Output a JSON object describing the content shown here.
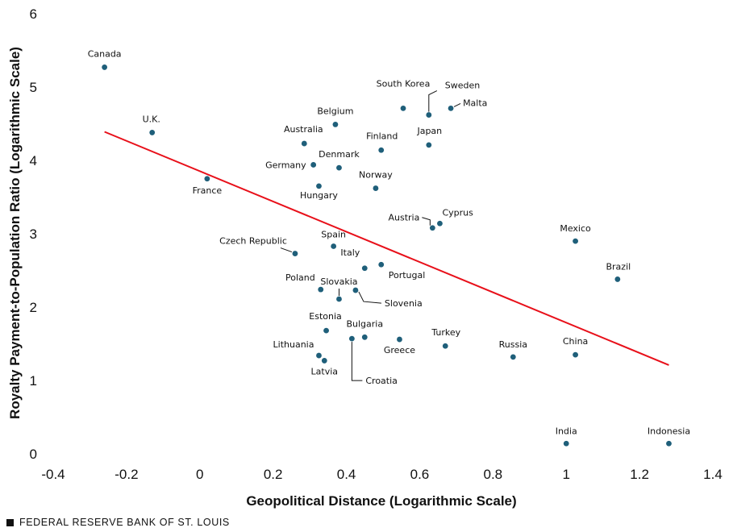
{
  "chart_data": {
    "type": "scatter",
    "xlabel": "Geopolitical Distance (Logarithmic Scale)",
    "ylabel": "Royalty Payment-to-Population Ratio (Logarithmic Scale)",
    "xlim": [
      -0.4,
      1.4
    ],
    "ylim": [
      0,
      6
    ],
    "xticks": [
      "-0.4",
      "-0.2",
      "0",
      "0.2",
      "0.4",
      "0.6",
      "0.8",
      "1",
      "1.2",
      "1.4"
    ],
    "yticks": [
      "0",
      "1",
      "2",
      "3",
      "4",
      "5",
      "6"
    ],
    "grid": false,
    "point_color": "#1f5f7a",
    "trend_color": "#e8101a",
    "trendline": {
      "x": [
        -0.26,
        1.28
      ],
      "y": [
        4.39,
        1.21
      ]
    },
    "points": [
      {
        "label": "Canada",
        "x": -0.26,
        "y": 5.27
      },
      {
        "label": "U.K.",
        "x": -0.13,
        "y": 4.38
      },
      {
        "label": "France",
        "x": 0.02,
        "y": 3.75
      },
      {
        "label": "Australia",
        "x": 0.285,
        "y": 4.23
      },
      {
        "label": "Belgium",
        "x": 0.37,
        "y": 4.49
      },
      {
        "label": "Germany",
        "x": 0.31,
        "y": 3.94
      },
      {
        "label": "Denmark",
        "x": 0.38,
        "y": 3.9
      },
      {
        "label": "Hungary",
        "x": 0.325,
        "y": 3.65
      },
      {
        "label": "Finland",
        "x": 0.495,
        "y": 4.14
      },
      {
        "label": "South Korea",
        "x": 0.555,
        "y": 4.71
      },
      {
        "label": "Sweden",
        "x": 0.625,
        "y": 4.62
      },
      {
        "label": "Malta",
        "x": 0.685,
        "y": 4.71
      },
      {
        "label": "Japan",
        "x": 0.625,
        "y": 4.21
      },
      {
        "label": "Norway",
        "x": 0.48,
        "y": 3.62
      },
      {
        "label": "Austria",
        "x": 0.635,
        "y": 3.08
      },
      {
        "label": "Cyprus",
        "x": 0.655,
        "y": 3.14
      },
      {
        "label": "Mexico",
        "x": 1.025,
        "y": 2.9
      },
      {
        "label": "Brazil",
        "x": 1.14,
        "y": 2.38
      },
      {
        "label": "Czech Republic",
        "x": 0.26,
        "y": 2.73
      },
      {
        "label": "Spain",
        "x": 0.365,
        "y": 2.83
      },
      {
        "label": "Italy",
        "x": 0.45,
        "y": 2.53
      },
      {
        "label": "Portugal",
        "x": 0.495,
        "y": 2.58
      },
      {
        "label": "Poland",
        "x": 0.33,
        "y": 2.24
      },
      {
        "label": "Slovakia",
        "x": 0.38,
        "y": 2.11
      },
      {
        "label": "Slovenia",
        "x": 0.425,
        "y": 2.23
      },
      {
        "label": "Estonia",
        "x": 0.345,
        "y": 1.68
      },
      {
        "label": "Bulgaria",
        "x": 0.45,
        "y": 1.59
      },
      {
        "label": "Croatia",
        "x": 0.415,
        "y": 1.57
      },
      {
        "label": "Greece",
        "x": 0.545,
        "y": 1.56
      },
      {
        "label": "Turkey",
        "x": 0.67,
        "y": 1.47
      },
      {
        "label": "Lithuania",
        "x": 0.325,
        "y": 1.34
      },
      {
        "label": "Latvia",
        "x": 0.34,
        "y": 1.27
      },
      {
        "label": "Russia",
        "x": 0.855,
        "y": 1.32
      },
      {
        "label": "China",
        "x": 1.025,
        "y": 1.35
      },
      {
        "label": "India",
        "x": 1.0,
        "y": 0.14
      },
      {
        "label": "Indonesia",
        "x": 1.28,
        "y": 0.14
      }
    ]
  },
  "footer": {
    "source": "FEDERAL RESERVE BANK OF ST. LOUIS"
  }
}
